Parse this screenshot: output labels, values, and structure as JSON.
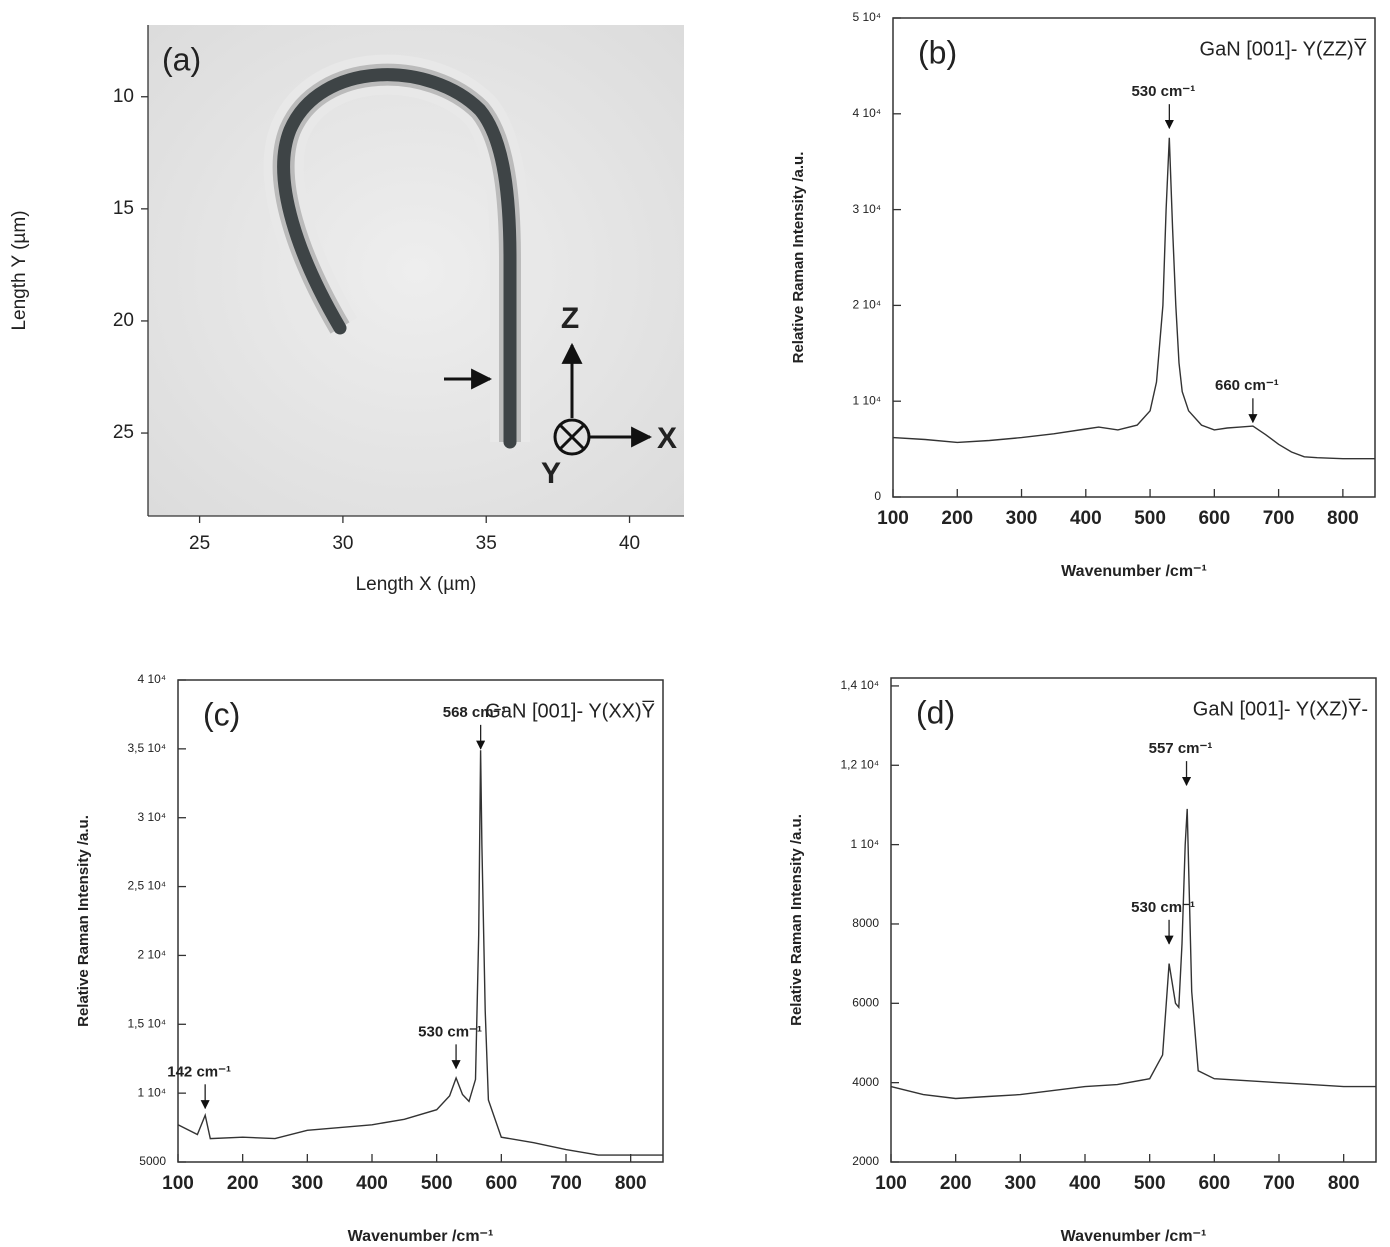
{
  "chart_data": [
    {
      "type": "image",
      "panel_label": "(a)",
      "x_label": "Length X (µm)",
      "y_label": "Length Y (µm)",
      "xlim": [
        23.2,
        41.9
      ],
      "ylim": [
        28.7,
        6.8
      ],
      "xticks": [
        25,
        30,
        35,
        40
      ],
      "yticks": [
        10,
        15,
        20,
        25
      ],
      "axis_glyphs": [
        "Z",
        "X",
        "Y"
      ]
    },
    {
      "type": "line",
      "panel_label": "(b)",
      "title": "GaN [001]- Y(ZZ)Y̅",
      "x_label": "Wavenumber /cm⁻¹",
      "y_label": "Relative Raman Intensity /a.u.",
      "x": [
        100,
        150,
        200,
        250,
        300,
        350,
        400,
        420,
        450,
        480,
        500,
        510,
        520,
        525,
        530,
        535,
        540,
        545,
        550,
        560,
        580,
        600,
        620,
        640,
        660,
        680,
        700,
        720,
        740,
        760,
        800,
        850
      ],
      "series": [
        {
          "color": "#333333",
          "values": [
            6200,
            6000,
            5700,
            5900,
            6200,
            6600,
            7100,
            7300,
            7000,
            7500,
            9000,
            12000,
            20000,
            30000,
            37500,
            28000,
            20000,
            14000,
            11000,
            9000,
            7500,
            7000,
            7200,
            7300,
            7400,
            6500,
            5500,
            4700,
            4200,
            4100,
            4000,
            4000
          ]
        }
      ],
      "xlim": [
        100,
        850
      ],
      "ylim": [
        0,
        50000
      ],
      "xticks": [
        100,
        200,
        300,
        400,
        500,
        600,
        700,
        800
      ],
      "yticks": [
        0,
        {
          "value": 10000,
          "label": "1 10⁴"
        },
        {
          "value": 20000,
          "label": "2 10⁴"
        },
        {
          "value": 30000,
          "label": "3 10⁴"
        },
        {
          "value": 40000,
          "label": "4 10⁴"
        },
        {
          "value": 50000,
          "label": "5 10⁴"
        }
      ],
      "annotations": [
        {
          "text": "530 cm⁻¹",
          "x": 530,
          "y": 38500
        },
        {
          "text": "660 cm⁻¹",
          "x": 660,
          "y": 7800
        }
      ]
    },
    {
      "type": "line",
      "panel_label": "(c)",
      "title": "GaN [001]- Y(XX)Y̅",
      "x_label": "Wavenumber /cm⁻¹",
      "y_label": "Relative Raman Intensity /a.u.",
      "x": [
        100,
        130,
        142,
        150,
        200,
        250,
        300,
        350,
        400,
        450,
        500,
        520,
        530,
        540,
        550,
        560,
        565,
        568,
        570,
        575,
        580,
        600,
        650,
        700,
        750,
        800,
        850
      ],
      "series": [
        {
          "color": "#333333",
          "values": [
            7700,
            7000,
            8400,
            6700,
            6800,
            6700,
            7300,
            7500,
            7700,
            8100,
            8800,
            9800,
            11100,
            9900,
            9400,
            11000,
            21500,
            34900,
            28000,
            16000,
            9500,
            6800,
            6400,
            5900,
            5500,
            5500,
            5500
          ]
        }
      ],
      "xlim": [
        100,
        850
      ],
      "ylim": [
        5000,
        40000
      ],
      "xticks": [
        100,
        200,
        300,
        400,
        500,
        600,
        700,
        800
      ],
      "yticks": [
        5000,
        {
          "value": 10000,
          "label": "1 10⁴"
        },
        {
          "value": 15000,
          "label": "1,5 10⁴"
        },
        {
          "value": 20000,
          "label": "2 10⁴"
        },
        {
          "value": 25000,
          "label": "2,5 10⁴"
        },
        {
          "value": 30000,
          "label": "3 10⁴"
        },
        {
          "value": 35000,
          "label": "3,5 10⁴"
        },
        {
          "value": 40000,
          "label": "4 10⁴"
        }
      ],
      "annotations": [
        {
          "text": "142 cm⁻¹",
          "x": 142,
          "y": 8900
        },
        {
          "text": "530 cm⁻¹",
          "x": 530,
          "y": 11800
        },
        {
          "text": "568 cm⁻¹",
          "x": 568,
          "y": 35000
        }
      ]
    },
    {
      "type": "line",
      "panel_label": "(d)",
      "title": "GaN [001]- Y(XZ)Y̅-",
      "x_label": "Wavenumber /cm⁻¹",
      "y_label": "Relative Raman Intensity /a.u.",
      "x": [
        100,
        150,
        200,
        250,
        300,
        350,
        400,
        450,
        500,
        520,
        530,
        540,
        545,
        550,
        555,
        558,
        565,
        575,
        600,
        650,
        700,
        750,
        800,
        850
      ],
      "series": [
        {
          "color": "#333333",
          "values": [
            3900,
            3700,
            3600,
            3650,
            3700,
            3800,
            3900,
            3950,
            4100,
            4700,
            7000,
            6000,
            5900,
            7500,
            10000,
            10900,
            6300,
            4300,
            4100,
            4050,
            4000,
            3950,
            3900,
            3900
          ]
        }
      ],
      "xlim": [
        100,
        850
      ],
      "ylim": [
        2000,
        14200
      ],
      "xticks": [
        100,
        200,
        300,
        400,
        500,
        600,
        700,
        800
      ],
      "yticks": [
        2000,
        4000,
        6000,
        8000,
        {
          "value": 10000,
          "label": "1 10⁴"
        },
        {
          "value": 12000,
          "label": "1,2 10⁴"
        },
        {
          "value": 14000,
          "label": "1,4 10⁴"
        }
      ],
      "annotations": [
        {
          "text": "530 cm⁻¹",
          "x": 530,
          "y": 7500
        },
        {
          "text": "557 cm⁻¹",
          "x": 557,
          "y": 11500
        }
      ]
    }
  ]
}
